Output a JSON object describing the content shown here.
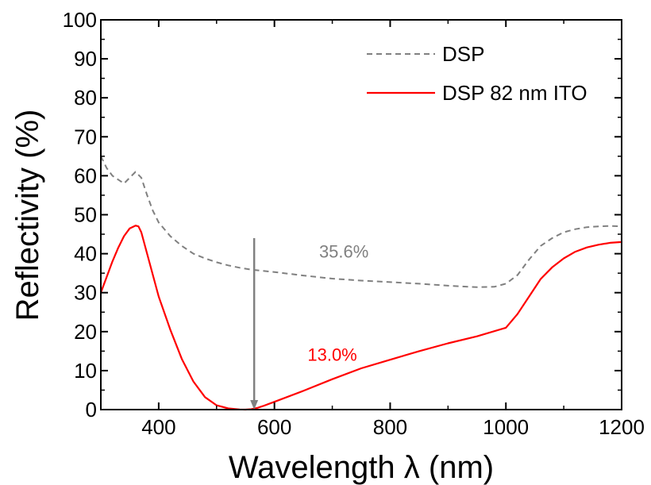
{
  "chart_data": {
    "type": "line",
    "title": "",
    "xlabel": "Wavelength λ (nm)",
    "ylabel": "Reflectivity (%)",
    "xlim": [
      300,
      1200
    ],
    "ylim": [
      0,
      100
    ],
    "x_ticks": [
      400,
      600,
      800,
      1000,
      1200
    ],
    "x_tick_labels": [
      "400",
      "600",
      "800",
      "1000",
      "1200"
    ],
    "y_ticks": [
      0,
      10,
      20,
      30,
      40,
      50,
      60,
      70,
      80,
      90,
      100
    ],
    "y_tick_labels": [
      "0",
      "10",
      "20",
      "30",
      "40",
      "50",
      "60",
      "70",
      "80",
      "90",
      "100"
    ],
    "grid": false,
    "legend_position": "top-right",
    "series": [
      {
        "name": "DSP",
        "color": "#808080",
        "style": "dashed",
        "x": [
          300,
          310,
          320,
          330,
          340,
          350,
          360,
          370,
          380,
          390,
          400,
          420,
          440,
          460,
          480,
          500,
          520,
          540,
          560,
          580,
          600,
          650,
          700,
          750,
          800,
          850,
          900,
          950,
          980,
          1000,
          1020,
          1040,
          1060,
          1080,
          1100,
          1120,
          1140,
          1160,
          1180,
          1200
        ],
        "y": [
          65,
          62,
          60,
          59,
          58,
          59.5,
          61,
          59.5,
          55,
          51,
          48,
          44.5,
          42,
          40,
          38.8,
          37.8,
          37,
          36.4,
          35.9,
          35.6,
          35.3,
          34.4,
          33.6,
          33.1,
          32.7,
          32.3,
          31.8,
          31.4,
          31.5,
          32.3,
          34.5,
          38.5,
          42,
          44,
          45.5,
          46.3,
          46.8,
          47,
          47.1,
          47
        ]
      },
      {
        "name": "DSP 82 nm ITO",
        "color": "#ff0000",
        "style": "solid",
        "x": [
          300,
          310,
          320,
          330,
          340,
          350,
          360,
          365,
          370,
          380,
          390,
          400,
          420,
          440,
          460,
          480,
          500,
          520,
          540,
          550,
          560,
          570,
          580,
          600,
          650,
          700,
          750,
          800,
          850,
          900,
          950,
          1000,
          1020,
          1040,
          1060,
          1080,
          1100,
          1120,
          1140,
          1160,
          1180,
          1200
        ],
        "y": [
          30,
          34,
          38,
          41.5,
          44.5,
          46.5,
          47.2,
          47,
          45.5,
          40,
          34.5,
          29,
          20.5,
          13,
          7.2,
          3.2,
          1.1,
          0.3,
          0.05,
          0,
          0.1,
          0.4,
          0.9,
          2,
          4.8,
          7.8,
          10.6,
          12.8,
          15,
          17,
          18.8,
          21,
          24.5,
          29,
          33.5,
          36.5,
          38.8,
          40.5,
          41.6,
          42.3,
          42.8,
          43
        ]
      }
    ],
    "annotations": [
      {
        "text": "35.6%",
        "x": 720,
        "y": 39,
        "color": "#808080"
      },
      {
        "text": "13.0%",
        "x": 700,
        "y": 12.5,
        "color": "#ff0000"
      }
    ],
    "arrow": {
      "x": 565,
      "y_from": 44,
      "y_to": 0,
      "color": "#808080"
    }
  }
}
